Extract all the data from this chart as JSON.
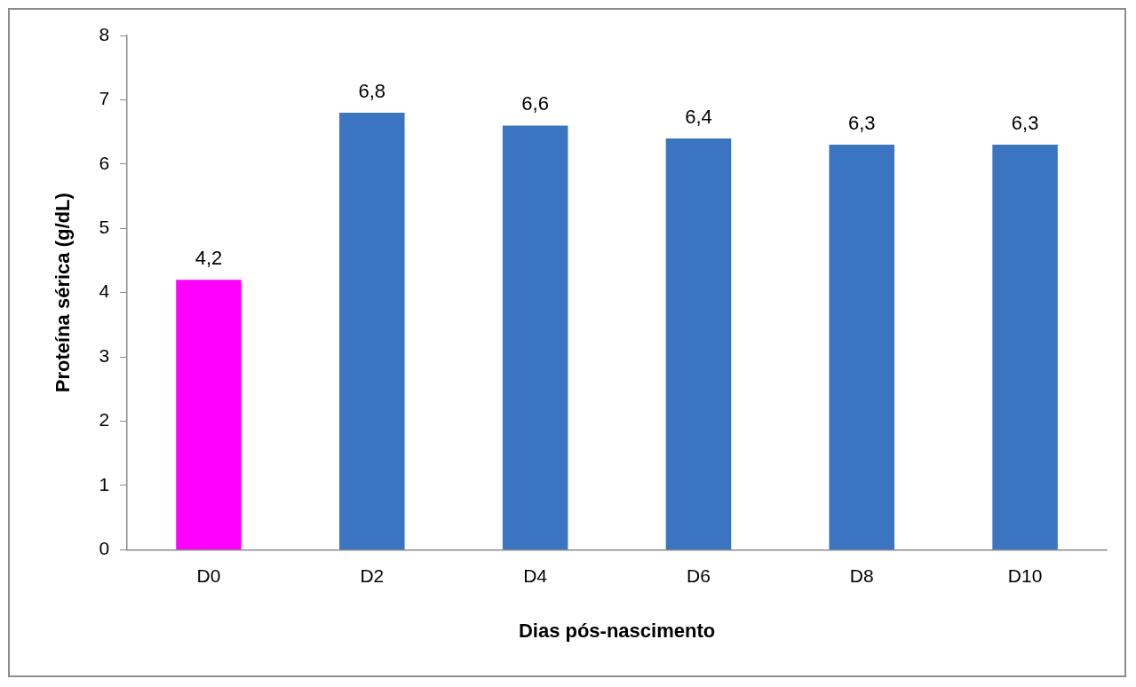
{
  "chart_data": {
    "type": "bar",
    "xlabel": "Dias pós-nascimento",
    "ylabel": "Proteína sérica (g/dL)",
    "categories": [
      "D0",
      "D2",
      "D4",
      "D6",
      "D8",
      "D10"
    ],
    "values": [
      4.2,
      6.8,
      6.6,
      6.4,
      6.3,
      6.3
    ],
    "colors": [
      "#ff00ff",
      "#3b75c2",
      "#3b75c2",
      "#3b75c2",
      "#3b75c2",
      "#3b75c2"
    ],
    "value_labels": [
      "4,2",
      "6,8",
      "6,6",
      "6,4",
      "6,3",
      "6,3"
    ],
    "ylim": [
      0,
      8
    ],
    "yticks": [
      0,
      1,
      2,
      3,
      4,
      5,
      6,
      7,
      8
    ],
    "grid": false,
    "legend": false
  }
}
